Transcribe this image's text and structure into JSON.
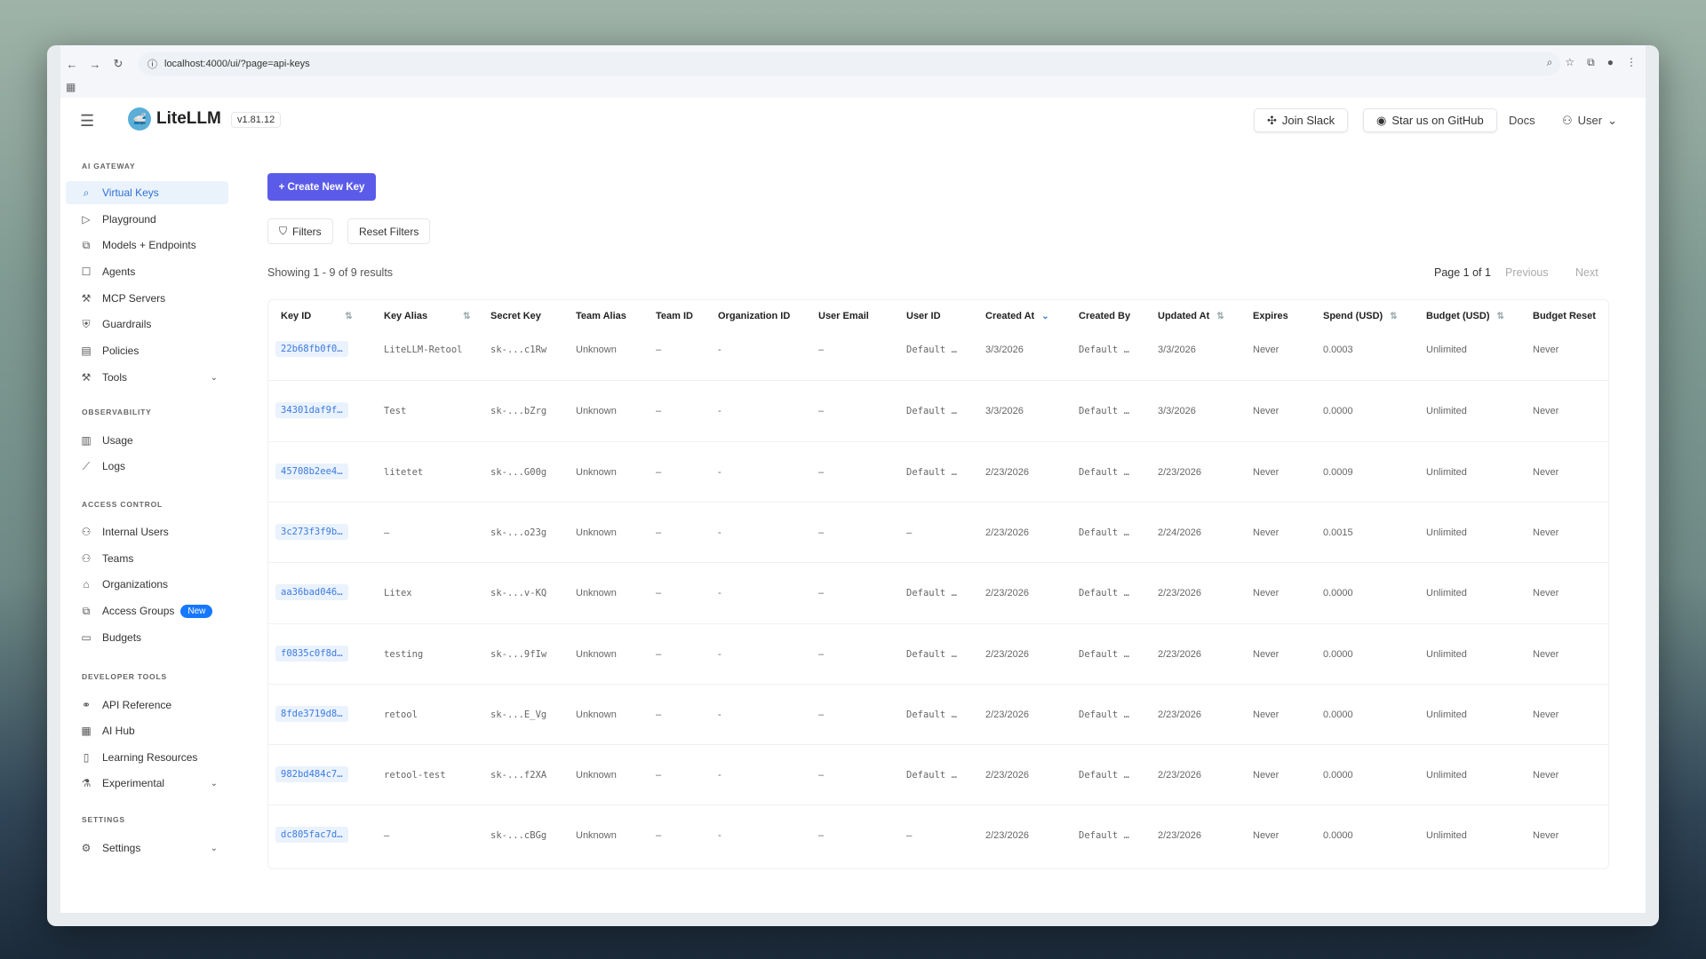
{
  "browser": {
    "url": "localhost:4000/ui/?page=api-keys"
  },
  "header": {
    "brand": "LiteLLM",
    "version": "v1.81.12",
    "join_slack": "Join Slack",
    "github": "Star us on GitHub",
    "docs": "Docs",
    "user": "User"
  },
  "sidebar": {
    "sections": [
      {
        "title": "AI GATEWAY",
        "items": [
          {
            "label": "Virtual Keys",
            "icon": "key-icon",
            "active": true
          },
          {
            "label": "Playground",
            "icon": "play-icon"
          },
          {
            "label": "Models + Endpoints",
            "icon": "models-icon"
          },
          {
            "label": "Agents",
            "icon": "agent-icon"
          },
          {
            "label": "MCP Servers",
            "icon": "tool-icon"
          },
          {
            "label": "Guardrails",
            "icon": "shield-icon"
          },
          {
            "label": "Policies",
            "icon": "policy-icon"
          },
          {
            "label": "Tools",
            "icon": "wrench-icon",
            "expandable": true
          }
        ]
      },
      {
        "title": "OBSERVABILITY",
        "items": [
          {
            "label": "Usage",
            "icon": "bar-chart-icon"
          },
          {
            "label": "Logs",
            "icon": "line-chart-icon"
          }
        ]
      },
      {
        "title": "ACCESS CONTROL",
        "items": [
          {
            "label": "Internal Users",
            "icon": "user-icon"
          },
          {
            "label": "Teams",
            "icon": "team-icon"
          },
          {
            "label": "Organizations",
            "icon": "bank-icon"
          },
          {
            "label": "Access Groups",
            "icon": "group-icon",
            "badge": "New"
          },
          {
            "label": "Budgets",
            "icon": "wallet-icon"
          }
        ]
      },
      {
        "title": "DEVELOPER TOOLS",
        "items": [
          {
            "label": "API Reference",
            "icon": "api-icon"
          },
          {
            "label": "AI Hub",
            "icon": "grid-icon"
          },
          {
            "label": "Learning Resources",
            "icon": "book-icon"
          },
          {
            "label": "Experimental",
            "icon": "flask-icon",
            "expandable": true
          }
        ]
      },
      {
        "title": "SETTINGS",
        "items": [
          {
            "label": "Settings",
            "icon": "gear-icon",
            "expandable": true
          }
        ]
      }
    ]
  },
  "main": {
    "create_button": "+ Create New Key",
    "filters": "Filters",
    "reset_filters": "Reset Filters",
    "showing": "Showing 1 - 9 of 9 results",
    "page": "Page 1 of 1",
    "previous": "Previous",
    "next": "Next",
    "columns": [
      {
        "label": "Key ID",
        "sort": "both"
      },
      {
        "label": "Key Alias",
        "sort": "both"
      },
      {
        "label": "Secret Key"
      },
      {
        "label": "Team Alias"
      },
      {
        "label": "Team ID"
      },
      {
        "label": "Organization ID"
      },
      {
        "label": "User Email"
      },
      {
        "label": "User ID"
      },
      {
        "label": "Created At",
        "sort": "desc"
      },
      {
        "label": "Created By"
      },
      {
        "label": "Updated At",
        "sort": "both"
      },
      {
        "label": "Expires"
      },
      {
        "label": "Spend (USD)",
        "sort": "both"
      },
      {
        "label": "Budget (USD)",
        "sort": "both"
      },
      {
        "label": "Budget Reset"
      }
    ],
    "rows": [
      [
        "22b68fb0f0…",
        "LiteLLM-Retool",
        "sk-...c1Rw",
        "Unknown",
        "–",
        "-",
        "–",
        "Default …",
        "3/3/2026",
        "Default …",
        "3/3/2026",
        "Never",
        "0.0003",
        "Unlimited",
        "Never"
      ],
      [
        "34301daf9f…",
        "Test",
        "sk-...bZrg",
        "Unknown",
        "–",
        "-",
        "–",
        "Default …",
        "3/3/2026",
        "Default …",
        "3/3/2026",
        "Never",
        "0.0000",
        "Unlimited",
        "Never"
      ],
      [
        "45708b2ee4…",
        "litetet",
        "sk-...G00g",
        "Unknown",
        "–",
        "-",
        "–",
        "Default …",
        "2/23/2026",
        "Default …",
        "2/23/2026",
        "Never",
        "0.0009",
        "Unlimited",
        "Never"
      ],
      [
        "3c273f3f9b…",
        "–",
        "sk-...o23g",
        "Unknown",
        "–",
        "-",
        "–",
        "–",
        "2/23/2026",
        "Default …",
        "2/24/2026",
        "Never",
        "0.0015",
        "Unlimited",
        "Never"
      ],
      [
        "aa36bad046…",
        "Litex",
        "sk-...v-KQ",
        "Unknown",
        "–",
        "-",
        "–",
        "Default …",
        "2/23/2026",
        "Default …",
        "2/23/2026",
        "Never",
        "0.0000",
        "Unlimited",
        "Never"
      ],
      [
        "f0835c0f8d…",
        "testing",
        "sk-...9fIw",
        "Unknown",
        "–",
        "-",
        "–",
        "Default …",
        "2/23/2026",
        "Default …",
        "2/23/2026",
        "Never",
        "0.0000",
        "Unlimited",
        "Never"
      ],
      [
        "8fde3719d8…",
        "retool",
        "sk-...E_Vg",
        "Unknown",
        "–",
        "-",
        "–",
        "Default …",
        "2/23/2026",
        "Default …",
        "2/23/2026",
        "Never",
        "0.0000",
        "Unlimited",
        "Never"
      ],
      [
        "982bd484c7…",
        "retool-test",
        "sk-...f2XA",
        "Unknown",
        "–",
        "-",
        "–",
        "Default …",
        "2/23/2026",
        "Default …",
        "2/23/2026",
        "Never",
        "0.0000",
        "Unlimited",
        "Never"
      ],
      [
        "dc805fac7d…",
        "–",
        "sk-...cBGg",
        "Unknown",
        "–",
        "-",
        "–",
        "–",
        "2/23/2026",
        "Default …",
        "2/23/2026",
        "Never",
        "0.0000",
        "Unlimited",
        "Never"
      ]
    ]
  },
  "colors": {
    "accent": "#5b5bea",
    "link": "#3d7be0",
    "badge": "#1677ff"
  }
}
